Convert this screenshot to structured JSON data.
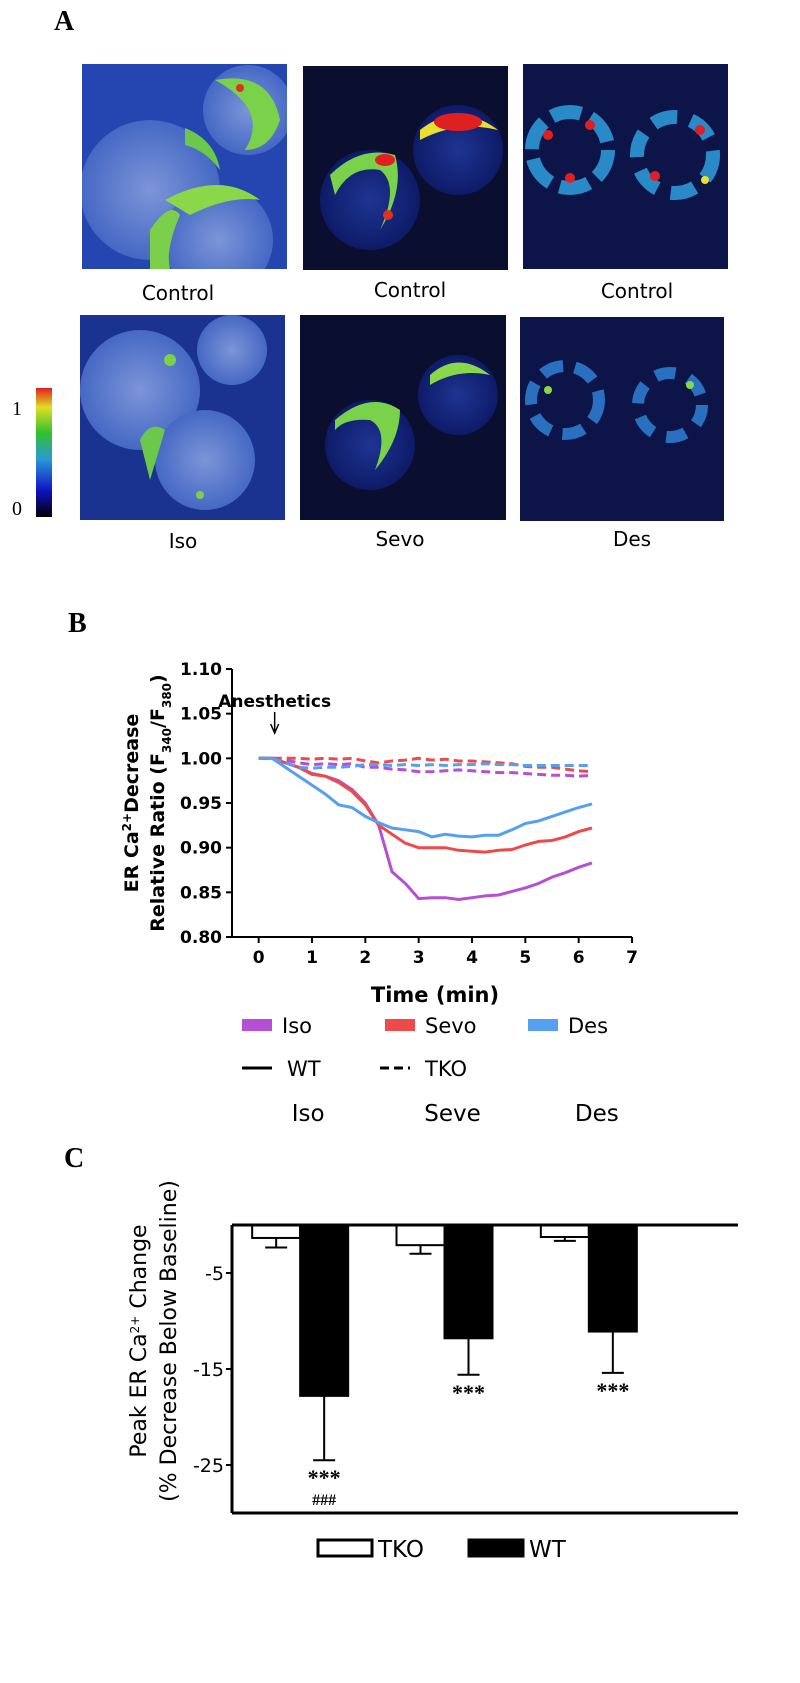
{
  "images": {
    "label": "A",
    "captions": [
      [
        "Control",
        "Control",
        "Control"
      ],
      [
        "Iso",
        "Sevo",
        "Des"
      ]
    ],
    "colorbar": {
      "max": 1,
      "min": 0
    }
  },
  "chart_data": [
    {
      "type": "line",
      "panel_label": "B",
      "xlabel": "Time (min)",
      "ylabel": {
        "line1": [
          "ER Ca",
          "2+",
          "Decrease"
        ],
        "line2": [
          "Relative Ratio (F",
          "340",
          "/F",
          "380",
          ")"
        ]
      },
      "annotations": [
        {
          "text": "Anesthetics",
          "x": 0.3
        }
      ],
      "x": [
        0,
        0.25,
        0.5,
        0.75,
        1,
        1.25,
        1.5,
        1.75,
        2,
        2.25,
        2.5,
        2.75,
        3,
        3.25,
        3.5,
        3.75,
        4,
        4.25,
        4.5,
        4.75,
        5,
        5.25,
        5.5,
        5.75,
        6,
        6.25
      ],
      "series": [
        {
          "name": "Iso",
          "line": "WT",
          "color": "#b54fd6",
          "dash": false,
          "values": [
            1.0,
            1.0,
            0.995,
            0.99,
            0.983,
            0.98,
            0.975,
            0.965,
            0.95,
            0.925,
            0.873,
            0.86,
            0.843,
            0.844,
            0.844,
            0.842,
            0.844,
            0.846,
            0.847,
            0.851,
            0.855,
            0.86,
            0.867,
            0.872,
            0.878,
            0.883
          ]
        },
        {
          "name": "Sevo",
          "line": "WT",
          "color": "#ef4a4a",
          "dash": false,
          "values": [
            1.0,
            1.0,
            0.995,
            0.99,
            0.982,
            0.98,
            0.973,
            0.963,
            0.948,
            0.925,
            0.915,
            0.905,
            0.9,
            0.9,
            0.9,
            0.897,
            0.896,
            0.895,
            0.897,
            0.898,
            0.903,
            0.907,
            0.908,
            0.912,
            0.918,
            0.922
          ]
        },
        {
          "name": "Des",
          "line": "WT",
          "color": "#56a0ef",
          "dash": false,
          "values": [
            1.0,
            1.0,
            0.99,
            0.98,
            0.97,
            0.96,
            0.948,
            0.945,
            0.935,
            0.928,
            0.922,
            0.92,
            0.918,
            0.912,
            0.915,
            0.913,
            0.912,
            0.914,
            0.914,
            0.92,
            0.927,
            0.93,
            0.935,
            0.94,
            0.945,
            0.949
          ]
        },
        {
          "name": "Iso",
          "line": "TKO",
          "color": "#b54fd6",
          "dash": true,
          "values": [
            1.0,
            1.0,
            0.998,
            0.995,
            0.993,
            0.994,
            0.993,
            0.994,
            0.99,
            0.99,
            0.988,
            0.987,
            0.985,
            0.985,
            0.986,
            0.987,
            0.986,
            0.985,
            0.984,
            0.984,
            0.983,
            0.982,
            0.981,
            0.981,
            0.98,
            0.981
          ]
        },
        {
          "name": "Sevo",
          "line": "TKO",
          "color": "#ef4a4a",
          "dash": true,
          "values": [
            1.0,
            1.0,
            1.0,
            1.0,
            0.999,
            1.0,
            0.999,
            1.0,
            0.997,
            0.995,
            0.997,
            0.998,
            1.0,
            0.998,
            0.999,
            0.997,
            0.997,
            0.996,
            0.995,
            0.994,
            0.991,
            0.99,
            0.99,
            0.988,
            0.986,
            0.985
          ]
        },
        {
          "name": "Des",
          "line": "TKO",
          "color": "#56a0ef",
          "dash": true,
          "values": [
            1.0,
            1.0,
            0.995,
            0.99,
            0.989,
            0.99,
            0.99,
            0.991,
            0.993,
            0.993,
            0.992,
            0.993,
            0.992,
            0.993,
            0.992,
            0.993,
            0.993,
            0.994,
            0.993,
            0.993,
            0.992,
            0.992,
            0.992,
            0.992,
            0.992,
            0.992
          ]
        }
      ],
      "xlim": [
        -0.5,
        7
      ],
      "xticks": [
        0,
        1,
        2,
        3,
        4,
        5,
        6,
        7
      ],
      "ylim": [
        0.8,
        1.1
      ],
      "yticks": [
        {
          "value": 0.8,
          "label": "0.80"
        },
        0.85,
        {
          "value": 0.9,
          "label": "0.90"
        },
        0.95,
        {
          "value": 1.0,
          "label": "1.00"
        },
        1.05,
        {
          "value": 1.1,
          "label": "1.10"
        }
      ]
    },
    {
      "type": "bar",
      "panel_label": "C",
      "ylabel": {
        "line1": [
          "Peak ER Ca",
          "2+",
          " Change"
        ],
        "line2": [
          "(% Decrease Below Baseline)"
        ]
      },
      "categories": [
        "Iso",
        "Seve",
        "Des"
      ],
      "series": [
        {
          "name": "TKO",
          "color": "#ffffff",
          "values": [
            -1.35,
            -2.1,
            -1.25
          ],
          "errors": [
            1.0,
            0.9,
            0.4
          ]
        },
        {
          "name": "WT",
          "color": "#000000",
          "values": [
            -17.8,
            -11.8,
            -11.1
          ],
          "errors": [
            6.7,
            3.8,
            4.3
          ],
          "annotations": [
            [
              "***",
              "###"
            ],
            [
              "***"
            ],
            [
              "***"
            ]
          ]
        }
      ],
      "ylim": [
        -30,
        0
      ],
      "yticks": [
        -5,
        -15,
        -25
      ]
    }
  ]
}
